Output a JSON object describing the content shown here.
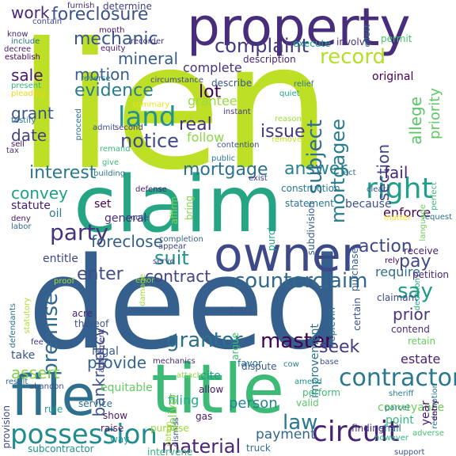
{
  "words": [
    {
      "text": "lien",
      "color": "#bddf26"
    },
    {
      "text": "deed",
      "color": "#35608d"
    },
    {
      "text": "claim",
      "color": "#25a584"
    },
    {
      "text": "property",
      "color": "#472d7b"
    },
    {
      "text": "title",
      "color": "#3bbb75"
    },
    {
      "text": "file",
      "color": "#2e6f8e"
    },
    {
      "text": "owner",
      "color": "#3e4989"
    },
    {
      "text": "possession",
      "color": "#228c8d"
    },
    {
      "text": "foreclosure",
      "color": "#3b528b"
    },
    {
      "text": "right",
      "color": "#1f9e89"
    },
    {
      "text": "circuit",
      "color": "#482475"
    },
    {
      "text": "contractor",
      "color": "#2a788e"
    },
    {
      "text": "counterclaim",
      "color": "#31688e"
    },
    {
      "text": "land",
      "color": "#21918c"
    },
    {
      "text": "party",
      "color": "#46337e"
    },
    {
      "text": "mechanic",
      "color": "#39568c"
    },
    {
      "text": "complaint",
      "color": "#443983"
    },
    {
      "text": "record",
      "color": "#b5de2b"
    },
    {
      "text": "evidence",
      "color": "#287c8e"
    },
    {
      "text": "notice",
      "color": "#3e4989"
    },
    {
      "text": "interest",
      "color": "#2a788e"
    },
    {
      "text": "mortgage",
      "color": "#2c728e"
    },
    {
      "text": "answer",
      "color": "#26828e"
    },
    {
      "text": "action",
      "color": "#3f4788"
    },
    {
      "text": "grantor",
      "color": "#2d708e"
    },
    {
      "text": "master",
      "color": "#440154"
    },
    {
      "text": "law",
      "color": "#2a788e"
    },
    {
      "text": "material",
      "color": "#482576"
    },
    {
      "text": "premise",
      "color": "#31688e"
    },
    {
      "text": "proceeding",
      "color": "#3e4c8a"
    },
    {
      "text": "subject",
      "color": "#2e6e8e"
    },
    {
      "text": "mortgagee",
      "color": "#287d8e"
    },
    {
      "text": "section",
      "color": "#414487"
    },
    {
      "text": "allege",
      "color": "#58c765"
    },
    {
      "text": "priority",
      "color": "#5ec962"
    },
    {
      "text": "mineral",
      "color": "#365d8d"
    },
    {
      "text": "work",
      "color": "#482979"
    },
    {
      "text": "sale",
      "color": "#481b6d"
    },
    {
      "text": "motion",
      "color": "#355f8d"
    },
    {
      "text": "lot",
      "color": "#440154"
    },
    {
      "text": "real",
      "color": "#46317e"
    },
    {
      "text": "issue",
      "color": "#453882"
    },
    {
      "text": "grant",
      "color": "#39558c"
    },
    {
      "text": "date",
      "color": "#424186"
    },
    {
      "text": "convey",
      "color": "#1fa088"
    },
    {
      "text": "suit",
      "color": "#21918c"
    },
    {
      "text": "enter",
      "color": "#3d4e8a"
    },
    {
      "text": "contract",
      "color": "#404588"
    },
    {
      "text": "say",
      "color": "#1f9a8a"
    },
    {
      "text": "prior",
      "color": "#463480"
    },
    {
      "text": "pay",
      "color": "#3f4889"
    },
    {
      "text": "seek",
      "color": "#443a83"
    },
    {
      "text": "provide",
      "color": "#32648e"
    },
    {
      "text": "assert",
      "color": "#81d34d"
    },
    {
      "text": "person",
      "color": "#26818e"
    },
    {
      "text": "payment",
      "color": "#32658e"
    },
    {
      "text": "bankruptcy",
      "color": "#3b528b"
    },
    {
      "text": "enforce",
      "color": "#440154"
    },
    {
      "text": "fail",
      "color": "#482878"
    },
    {
      "text": "estate",
      "color": "#482173"
    },
    {
      "text": "require",
      "color": "#2f6c8e"
    },
    {
      "text": "general",
      "color": "#472f7d"
    },
    {
      "text": "foreclose",
      "color": "#34618d"
    },
    {
      "text": "complete",
      "color": "#46327e"
    },
    {
      "text": "follow",
      "color": "#8bd646"
    },
    {
      "text": "grantee",
      "color": "#9bd93c"
    },
    {
      "text": "describe",
      "color": "#3a548c"
    },
    {
      "text": "original",
      "color": "#440154"
    },
    {
      "text": "statute",
      "color": "#481c6e"
    },
    {
      "text": "because",
      "color": "#3c508b"
    },
    {
      "text": "entitle",
      "color": "#3f4788"
    },
    {
      "text": "oil",
      "color": "#297a8e"
    },
    {
      "text": "take",
      "color": "#3a548c"
    },
    {
      "text": "filing",
      "color": "#22a884"
    },
    {
      "text": "legal",
      "color": "#38588c"
    },
    {
      "text": "conveyance",
      "color": "#6ccd5a"
    },
    {
      "text": "improvement",
      "color": "#2c718e"
    },
    {
      "text": "equitable",
      "color": "#63cb5f"
    },
    {
      "text": "deliver",
      "color": "#84d44b"
    },
    {
      "text": "shall",
      "color": "#2e6e8e"
    },
    {
      "text": "set",
      "color": "#440154"
    },
    {
      "text": "rule",
      "color": "#20a386"
    },
    {
      "text": "year",
      "color": "#481769"
    },
    {
      "text": "point",
      "color": "#35b779"
    },
    {
      "text": "base",
      "color": "#3c4f8a"
    },
    {
      "text": "certain",
      "color": "#3a538b"
    },
    {
      "text": "contend",
      "color": "#472c7a"
    },
    {
      "text": "retain",
      "color": "#67cc5c"
    },
    {
      "text": "claimant",
      "color": "#3f4889"
    },
    {
      "text": "petition",
      "color": "#482677"
    },
    {
      "text": "receive",
      "color": "#482071"
    },
    {
      "text": "purchase",
      "color": "#33628d"
    },
    {
      "text": "subcontractor",
      "color": "#1f948c"
    },
    {
      "text": "intervene",
      "color": "#33b67a"
    },
    {
      "text": "truck",
      "color": "#2d708e"
    },
    {
      "text": "gas",
      "color": "#481668"
    },
    {
      "text": "dismiss",
      "color": "#3c4f8a"
    },
    {
      "text": "raise",
      "color": "#48196b"
    },
    {
      "text": "way",
      "color": "#21918c"
    },
    {
      "text": "service",
      "color": "#2d708e"
    },
    {
      "text": "show",
      "color": "#48186a"
    },
    {
      "text": "allow",
      "color": "#481a6c"
    },
    {
      "text": "cite",
      "color": "#1f968b"
    },
    {
      "text": "tract",
      "color": "#3b528b"
    },
    {
      "text": "favor",
      "color": "#2b758e"
    },
    {
      "text": "dispute",
      "color": "#38588c"
    },
    {
      "text": "argue",
      "color": "#3bbb75"
    },
    {
      "text": "replevin",
      "color": "#2e6f8e"
    },
    {
      "text": "finding",
      "color": "#46307e"
    },
    {
      "text": "valid",
      "color": "#5cc863"
    },
    {
      "text": "perform",
      "color": "#3fbc73"
    },
    {
      "text": "amend",
      "color": "#1f958b"
    },
    {
      "text": "sheriff",
      "color": "#287c8e"
    },
    {
      "text": "parcel",
      "color": "#26828e"
    },
    {
      "text": "support",
      "color": "#3b528b"
    },
    {
      "text": "however",
      "color": "#31b57b"
    },
    {
      "text": "adverse",
      "color": "#45c06f"
    },
    {
      "text": "redemption",
      "color": "#2a768e"
    },
    {
      "text": "entry",
      "color": "#440154"
    },
    {
      "text": "purpose",
      "color": "#9bd93c"
    },
    {
      "text": "obtain",
      "color": "#a2da37"
    },
    {
      "text": "cow",
      "color": "#26828e"
    },
    {
      "text": "attach",
      "color": "#8bd646"
    },
    {
      "text": "mechanics",
      "color": "#472a7a"
    },
    {
      "text": "agreement",
      "color": "#433e85"
    },
    {
      "text": "abandon",
      "color": "#3c4f8a"
    },
    {
      "text": "result",
      "color": "#31688e"
    },
    {
      "text": "provision",
      "color": "#3e4989"
    },
    {
      "text": "fee",
      "color": "#46337e"
    },
    {
      "text": "defendants",
      "color": "#2d718e"
    },
    {
      "text": "statutory",
      "color": "#b2dd2d"
    },
    {
      "text": "proof",
      "color": "#a2da37"
    },
    {
      "text": "acre",
      "color": "#482475"
    },
    {
      "text": "thereof",
      "color": "#3b528b"
    },
    {
      "text": "decision",
      "color": "#25ac82"
    },
    {
      "text": "rely",
      "color": "#440154"
    },
    {
      "text": "matter",
      "color": "#fde725"
    },
    {
      "text": "request",
      "color": "#2d708e"
    },
    {
      "text": "language",
      "color": "#6ece58"
    },
    {
      "text": "perfect",
      "color": "#3aba76"
    },
    {
      "text": "clear",
      "color": "#3b528b"
    },
    {
      "text": "act",
      "color": "#2e6e8e"
    },
    {
      "text": "statement",
      "color": "#2c728e"
    },
    {
      "text": "subdivision",
      "color": "#34608d"
    },
    {
      "text": "exist",
      "color": "#424086"
    },
    {
      "text": "purchaser",
      "color": "#1f9e89"
    },
    {
      "text": "construction",
      "color": "#29798e"
    },
    {
      "text": "affirm",
      "color": "#81d34d"
    },
    {
      "text": "bring",
      "color": "#86d549"
    },
    {
      "text": "public",
      "color": "#2a788e"
    },
    {
      "text": "give",
      "color": "#3bbb75"
    },
    {
      "text": "building",
      "color": "#2b748e"
    },
    {
      "text": "defense",
      "color": "#481f70"
    },
    {
      "text": "completion",
      "color": "#355e8d"
    },
    {
      "text": "appear",
      "color": "#3f4788"
    },
    {
      "text": "serve",
      "color": "#3f4889"
    },
    {
      "text": "damage",
      "color": "#a0da39"
    },
    {
      "text": "error",
      "color": "#8bd646"
    },
    {
      "text": "note",
      "color": "#3b528b"
    },
    {
      "text": "deny",
      "color": "#481467"
    },
    {
      "text": "labor",
      "color": "#31688e"
    },
    {
      "text": "tax",
      "color": "#46307e"
    },
    {
      "text": "sell",
      "color": "#460b5e"
    },
    {
      "text": "testify",
      "color": "#2c738e"
    },
    {
      "text": "pleading",
      "color": "#ead61c"
    },
    {
      "text": "present",
      "color": "#31b57b"
    },
    {
      "text": "establish",
      "color": "#440154"
    },
    {
      "text": "decree",
      "color": "#482173"
    },
    {
      "text": "know",
      "color": "#482576"
    },
    {
      "text": "include",
      "color": "#2d708e"
    },
    {
      "text": "contain",
      "color": "#3f4788"
    },
    {
      "text": "furnish",
      "color": "#472e7c"
    },
    {
      "text": "month",
      "color": "#471063"
    },
    {
      "text": "equity",
      "color": "#481467"
    },
    {
      "text": "reverse",
      "color": "#287d8e"
    },
    {
      "text": "proceed",
      "color": "#2e6f8e"
    },
    {
      "text": "admit",
      "color": "#3a548c"
    },
    {
      "text": "second",
      "color": "#46317e"
    },
    {
      "text": "remand",
      "color": "#3bbb75"
    },
    {
      "text": "summary",
      "color": "#ece51b"
    },
    {
      "text": "instant",
      "color": "#453882"
    },
    {
      "text": "remove",
      "color": "#c8e020"
    },
    {
      "text": "contention",
      "color": "#3c508b"
    },
    {
      "text": "reason",
      "color": "#9bd93c"
    },
    {
      "text": "quiet",
      "color": "#21a685"
    },
    {
      "text": "circumstance",
      "color": "#3e4a89"
    },
    {
      "text": "relief",
      "color": "#2b748e"
    },
    {
      "text": "description",
      "color": "#482677"
    },
    {
      "text": "execute",
      "color": "#1fa088"
    },
    {
      "text": "involve",
      "color": "#46337e"
    },
    {
      "text": "permit",
      "color": "#4ac16d"
    },
    {
      "text": "effect",
      "color": "#2c718e"
    },
    {
      "text": "determine",
      "color": "#424186"
    },
    {
      "text": "recorder",
      "color": "#472e7c"
    }
  ]
}
